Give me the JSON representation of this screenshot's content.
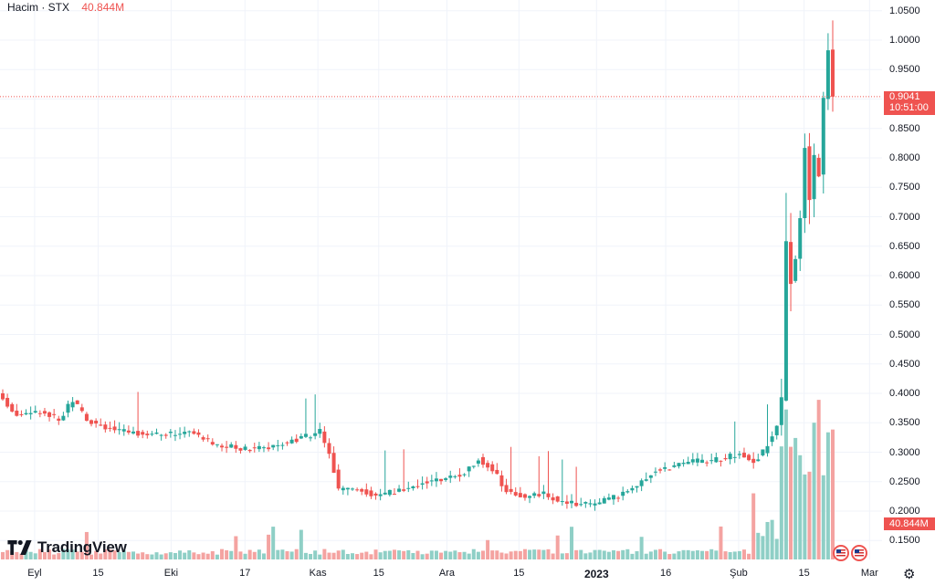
{
  "legend": {
    "label": "Hacim · STX",
    "value": "40.844M"
  },
  "brand": {
    "name": "TradingView"
  },
  "price_badge": {
    "price": "0.9041",
    "time": "10:51:00"
  },
  "volume_badge": "40.844M",
  "colors": {
    "up": "#26a69a",
    "down": "#ef5350",
    "up_volume": "#8fcfc6",
    "down_volume": "#f4a3a1",
    "grid": "#f0f3fa"
  },
  "icons": [
    "tradingview-logo-icon",
    "us-flag-icon",
    "settings-gear-icon"
  ],
  "chart_data": {
    "type": "candlestick",
    "symbol": "STX",
    "ylim": [
      0.125,
      1.06
    ],
    "y_ticks": [
      "1.0500",
      "1.0000",
      "0.9500",
      "0.9000",
      "0.8500",
      "0.8000",
      "0.7500",
      "0.7000",
      "0.6500",
      "0.6000",
      "0.5500",
      "0.5000",
      "0.4500",
      "0.4000",
      "0.3500",
      "0.3000",
      "0.2500",
      "0.2000",
      "0.1500"
    ],
    "x_ticks": [
      {
        "label": "Eyl",
        "pos": 0.037
      },
      {
        "label": "15",
        "pos": 0.105
      },
      {
        "label": "Eki",
        "pos": 0.183
      },
      {
        "label": "17",
        "pos": 0.262
      },
      {
        "label": "Kas",
        "pos": 0.34
      },
      {
        "label": "15",
        "pos": 0.405
      },
      {
        "label": "Ara",
        "pos": 0.478
      },
      {
        "label": "15",
        "pos": 0.555
      },
      {
        "label": "2023",
        "pos": 0.638,
        "bold": true
      },
      {
        "label": "16",
        "pos": 0.712
      },
      {
        "label": "Şub",
        "pos": 0.79
      },
      {
        "label": "15",
        "pos": 0.86
      },
      {
        "label": "Mar",
        "pos": 0.93
      }
    ],
    "last_price": 0.9041,
    "keypoints": [
      [
        0,
        0.39
      ],
      [
        3,
        0.365
      ],
      [
        8,
        0.37
      ],
      [
        12,
        0.355
      ],
      [
        15,
        0.39
      ],
      [
        18,
        0.355
      ],
      [
        25,
        0.335
      ],
      [
        35,
        0.33
      ],
      [
        40,
        0.335
      ],
      [
        45,
        0.315
      ],
      [
        52,
        0.305
      ],
      [
        58,
        0.31
      ],
      [
        62,
        0.32
      ],
      [
        68,
        0.335
      ],
      [
        70,
        0.3
      ],
      [
        72,
        0.235
      ],
      [
        76,
        0.24
      ],
      [
        80,
        0.225
      ],
      [
        85,
        0.235
      ],
      [
        90,
        0.25
      ],
      [
        95,
        0.255
      ],
      [
        99,
        0.265
      ],
      [
        102,
        0.29
      ],
      [
        105,
        0.27
      ],
      [
        108,
        0.235
      ],
      [
        112,
        0.225
      ],
      [
        116,
        0.23
      ],
      [
        120,
        0.215
      ],
      [
        124,
        0.21
      ],
      [
        128,
        0.215
      ],
      [
        132,
        0.225
      ],
      [
        136,
        0.245
      ],
      [
        140,
        0.27
      ],
      [
        144,
        0.275
      ],
      [
        148,
        0.285
      ],
      [
        152,
        0.285
      ],
      [
        155,
        0.29
      ],
      [
        158,
        0.3
      ],
      [
        161,
        0.285
      ],
      [
        163,
        0.3
      ],
      [
        166,
        0.345
      ],
      [
        167,
        0.39
      ],
      [
        168,
        0.66
      ],
      [
        169,
        0.59
      ],
      [
        170,
        0.63
      ],
      [
        171,
        0.7
      ],
      [
        172,
        0.82
      ],
      [
        173,
        0.73
      ],
      [
        174,
        0.8
      ],
      [
        175,
        0.77
      ],
      [
        176,
        0.9
      ],
      [
        177,
        0.985
      ],
      [
        178,
        0.9041
      ]
    ],
    "volume_max": 0.36
  }
}
